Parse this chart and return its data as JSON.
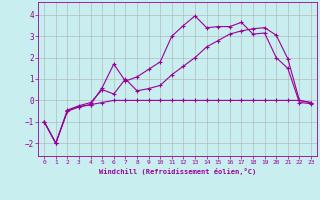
{
  "xlabel": "Windchill (Refroidissement éolien,°C)",
  "background_color": "#c8eef0",
  "line_color": "#990099",
  "grid_color": "#b0b0b0",
  "xlim": [
    -0.5,
    23.5
  ],
  "ylim": [
    -2.6,
    4.6
  ],
  "yticks": [
    -2,
    -1,
    0,
    1,
    2,
    3,
    4
  ],
  "xticks": [
    0,
    1,
    2,
    3,
    4,
    5,
    6,
    7,
    8,
    9,
    10,
    11,
    12,
    13,
    14,
    15,
    16,
    17,
    18,
    19,
    20,
    21,
    22,
    23
  ],
  "series": [
    {
      "x": [
        0,
        1,
        2,
        3,
        4,
        5,
        6,
        7,
        8,
        9,
        10,
        11,
        12,
        13,
        14,
        15,
        16,
        17,
        18,
        19,
        20,
        21,
        22,
        23
      ],
      "y": [
        -1,
        -2,
        -0.5,
        -0.3,
        -0.2,
        -0.1,
        0,
        0,
        0,
        0,
        0,
        0,
        0,
        0,
        0,
        0,
        0,
        0,
        0,
        0,
        0,
        0,
        0,
        -0.1
      ]
    },
    {
      "x": [
        0,
        1,
        2,
        3,
        4,
        5,
        6,
        7,
        8,
        9,
        10,
        11,
        12,
        13,
        14,
        15,
        16,
        17,
        18,
        19,
        20,
        21,
        22,
        23
      ],
      "y": [
        -1,
        -2,
        -0.5,
        -0.3,
        -0.2,
        0.6,
        1.7,
        0.9,
        1.1,
        1.45,
        1.8,
        3.0,
        3.5,
        3.95,
        3.4,
        3.45,
        3.45,
        3.65,
        3.1,
        3.15,
        2.0,
        1.5,
        -0.1,
        -0.15
      ]
    },
    {
      "x": [
        0,
        1,
        2,
        3,
        4,
        5,
        6,
        7,
        8,
        9,
        10,
        11,
        12,
        13,
        14,
        15,
        16,
        17,
        18,
        19,
        20,
        21,
        22,
        23
      ],
      "y": [
        -1,
        -2,
        -0.45,
        -0.25,
        -0.1,
        0.5,
        0.3,
        1.0,
        0.45,
        0.55,
        0.7,
        1.2,
        1.6,
        2.0,
        2.5,
        2.8,
        3.1,
        3.25,
        3.35,
        3.4,
        3.05,
        1.95,
        0.0,
        -0.1
      ]
    }
  ]
}
